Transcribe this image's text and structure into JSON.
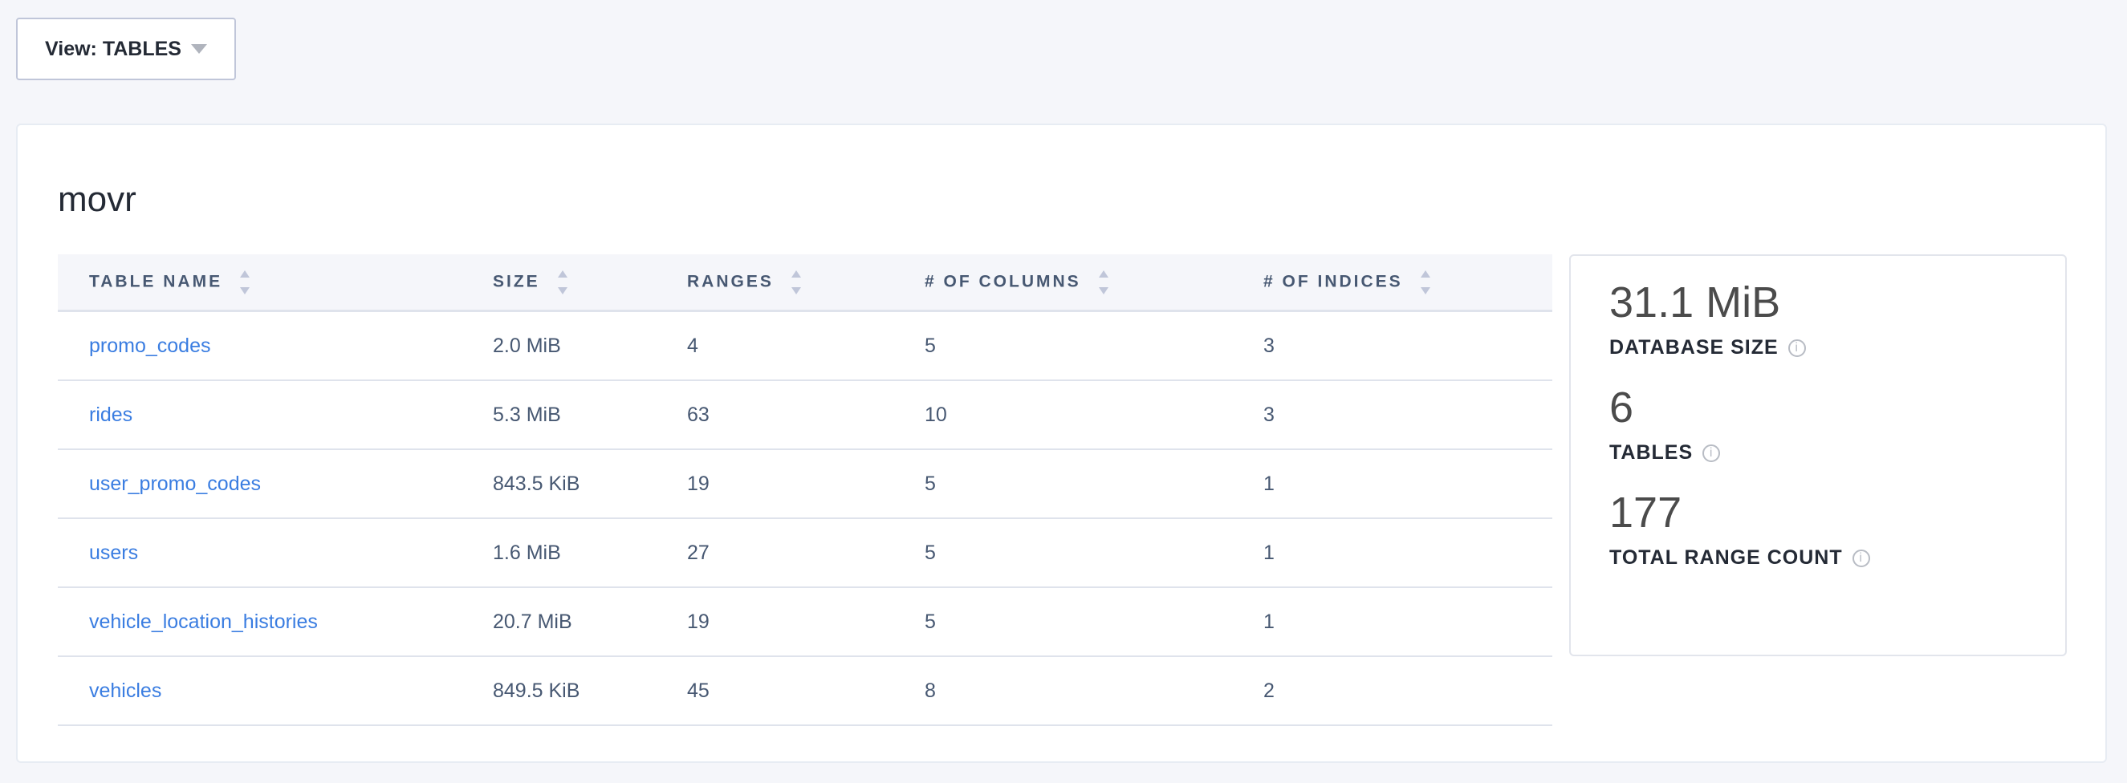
{
  "view_selector": {
    "label": "View: TABLES"
  },
  "database": {
    "name": "movr"
  },
  "table": {
    "columns": [
      "TABLE NAME",
      "SIZE",
      "RANGES",
      "# OF COLUMNS",
      "# OF INDICES"
    ],
    "rows": [
      [
        "promo_codes",
        "2.0 MiB",
        "4",
        "5",
        "3"
      ],
      [
        "rides",
        "5.3 MiB",
        "63",
        "10",
        "3"
      ],
      [
        "user_promo_codes",
        "843.5 KiB",
        "19",
        "5",
        "1"
      ],
      [
        "users",
        "1.6 MiB",
        "27",
        "5",
        "1"
      ],
      [
        "vehicle_location_histories",
        "20.7 MiB",
        "19",
        "5",
        "1"
      ],
      [
        "vehicles",
        "849.5 KiB",
        "45",
        "8",
        "2"
      ]
    ]
  },
  "stats": [
    {
      "value": "31.1 MiB",
      "label": "DATABASE SIZE"
    },
    {
      "value": "6",
      "label": "TABLES"
    },
    {
      "value": "177",
      "label": "TOTAL RANGE COUNT"
    }
  ],
  "colors": {
    "link": "#3a7de1",
    "background": "#f5f6fa"
  }
}
